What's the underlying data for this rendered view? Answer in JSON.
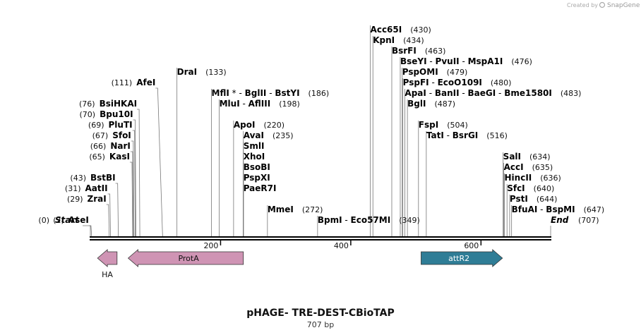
{
  "credit": {
    "prefix": "Created by",
    "brand": "SnapGene"
  },
  "title": "pHAGE- TRE-DEST-CBioTAP",
  "length_label": "707 bp",
  "sequence_length": 707,
  "ticks": [
    "200",
    "400",
    "600"
  ],
  "tick_values": [
    200,
    400,
    600
  ],
  "start_label": "Start",
  "end_label": "End",
  "start_pos": "(0)",
  "end_pos": "(707)",
  "sites": [
    {
      "id": "asei",
      "segs": [
        {
          "t": "AseI",
          "b": true
        }
      ],
      "pos": "(2)",
      "site": 2,
      "row": 1,
      "side": "left"
    },
    {
      "id": "zrai",
      "segs": [
        {
          "t": "ZraI",
          "b": true
        }
      ],
      "pos": "(29)",
      "site": 29,
      "row": 3,
      "side": "left"
    },
    {
      "id": "aatii",
      "segs": [
        {
          "t": "AatII",
          "b": true
        }
      ],
      "pos": "(31)",
      "site": 31,
      "row": 4,
      "side": "left"
    },
    {
      "id": "bstbi",
      "segs": [
        {
          "t": "BstBI",
          "b": true
        }
      ],
      "pos": "(43)",
      "site": 43,
      "row": 5,
      "side": "left"
    },
    {
      "id": "kasi",
      "segs": [
        {
          "t": "KasI",
          "b": true
        }
      ],
      "pos": "(65)",
      "site": 65,
      "row": 7,
      "side": "left"
    },
    {
      "id": "nari",
      "segs": [
        {
          "t": "NarI",
          "b": true
        }
      ],
      "pos": "(66)",
      "site": 66,
      "row": 8,
      "side": "left"
    },
    {
      "id": "sfoi",
      "segs": [
        {
          "t": "SfoI",
          "b": true
        }
      ],
      "pos": "(67)",
      "site": 67,
      "row": 9,
      "side": "left"
    },
    {
      "id": "plutI",
      "segs": [
        {
          "t": "PluTI",
          "b": true
        }
      ],
      "pos": "(69)",
      "site": 69,
      "row": 10,
      "side": "left"
    },
    {
      "id": "bpu10i",
      "segs": [
        {
          "t": "Bpu10I",
          "b": true
        }
      ],
      "pos": "(70)",
      "site": 70,
      "row": 11,
      "side": "left"
    },
    {
      "id": "bsihkai",
      "segs": [
        {
          "t": "BsiHKAI",
          "b": true
        }
      ],
      "pos": "(76)",
      "site": 76,
      "row": 12,
      "side": "left"
    },
    {
      "id": "afei",
      "segs": [
        {
          "t": "AfeI",
          "b": true
        }
      ],
      "pos": "(111)",
      "site": 111,
      "row": 14,
      "side": "left"
    },
    {
      "id": "drai",
      "segs": [
        {
          "t": "DraI",
          "b": true
        }
      ],
      "pos": "(133)",
      "site": 133,
      "row": 15,
      "side": "right"
    },
    {
      "id": "mfli",
      "segs": [
        {
          "t": "MflI",
          "b": true
        },
        {
          "t": " * - ",
          "b": false
        },
        {
          "t": "BglII",
          "b": true
        },
        {
          "t": "  - ",
          "b": false
        },
        {
          "t": "BstYI",
          "b": true
        }
      ],
      "pos": "(186)",
      "site": 186,
      "row": 13,
      "side": "right"
    },
    {
      "id": "mlui",
      "segs": [
        {
          "t": "MluI",
          "b": true
        },
        {
          "t": "  - ",
          "b": false
        },
        {
          "t": "AflIII",
          "b": true
        }
      ],
      "pos": "(198)",
      "site": 198,
      "row": 12,
      "side": "right"
    },
    {
      "id": "apoi",
      "segs": [
        {
          "t": "ApoI",
          "b": true
        }
      ],
      "pos": "(220)",
      "site": 220,
      "row": 10,
      "side": "right"
    },
    {
      "id": "avai",
      "segs": [
        {
          "t": "AvaI",
          "b": true
        }
      ],
      "pos": "(235)",
      "site": 235,
      "row": 9,
      "side": "right"
    },
    {
      "id": "smli",
      "segs": [
        {
          "t": "SmlI",
          "b": true
        }
      ],
      "pos": "",
      "site": 235,
      "row": 8,
      "side": "right"
    },
    {
      "id": "xhoi",
      "segs": [
        {
          "t": "XhoI",
          "b": true
        }
      ],
      "pos": "",
      "site": 235,
      "row": 7,
      "side": "right"
    },
    {
      "id": "bsobi",
      "segs": [
        {
          "t": "BsoBI",
          "b": true
        }
      ],
      "pos": "",
      "site": 235,
      "row": 6,
      "side": "right"
    },
    {
      "id": "pspxi",
      "segs": [
        {
          "t": "PspXI",
          "b": true
        }
      ],
      "pos": "",
      "site": 235,
      "row": 5,
      "side": "right"
    },
    {
      "id": "paer7i",
      "segs": [
        {
          "t": "PaeR7I",
          "b": true
        }
      ],
      "pos": "",
      "site": 235,
      "row": 4,
      "side": "right"
    },
    {
      "id": "mmei",
      "segs": [
        {
          "t": "MmeI",
          "b": true
        }
      ],
      "pos": "(272)",
      "site": 272,
      "row": 2,
      "side": "right"
    },
    {
      "id": "bpmi",
      "segs": [
        {
          "t": "BpmI",
          "b": true
        },
        {
          "t": "  - ",
          "b": false
        },
        {
          "t": "Eco57MI",
          "b": true
        }
      ],
      "pos": "(349)",
      "site": 349,
      "row": 1,
      "side": "right"
    },
    {
      "id": "acc65i",
      "segs": [
        {
          "t": "Acc65I",
          "b": true
        }
      ],
      "pos": "(430)",
      "site": 430,
      "row": 19,
      "side": "right"
    },
    {
      "id": "kpni",
      "segs": [
        {
          "t": "KpnI",
          "b": true
        }
      ],
      "pos": "(434)",
      "site": 434,
      "row": 18,
      "side": "right"
    },
    {
      "id": "bsrfi",
      "segs": [
        {
          "t": "BsrFI",
          "b": true
        }
      ],
      "pos": "(463)",
      "site": 463,
      "row": 17,
      "side": "right"
    },
    {
      "id": "bseyi",
      "segs": [
        {
          "t": "BseYI",
          "b": true
        },
        {
          "t": "  - ",
          "b": false
        },
        {
          "t": "PvuII",
          "b": true
        },
        {
          "t": "  - ",
          "b": false
        },
        {
          "t": "MspA1I",
          "b": true
        }
      ],
      "pos": "(476)",
      "site": 476,
      "row": 16,
      "side": "right"
    },
    {
      "id": "pspomi",
      "segs": [
        {
          "t": "PspOMI",
          "b": true
        }
      ],
      "pos": "(479)",
      "site": 479,
      "row": 15,
      "side": "right"
    },
    {
      "id": "pspfi",
      "segs": [
        {
          "t": "PspFI",
          "b": true
        },
        {
          "t": "  - ",
          "b": false
        },
        {
          "t": "EcoO109I",
          "b": true
        }
      ],
      "pos": "(480)",
      "site": 480,
      "row": 14,
      "side": "right"
    },
    {
      "id": "apai",
      "segs": [
        {
          "t": "ApaI",
          "b": true
        },
        {
          "t": "  - ",
          "b": false
        },
        {
          "t": "BanII",
          "b": true
        },
        {
          "t": "  - ",
          "b": false
        },
        {
          "t": "BaeGI",
          "b": true
        },
        {
          "t": "  - ",
          "b": false
        },
        {
          "t": "Bme1580I",
          "b": true
        }
      ],
      "pos": "(483)",
      "site": 483,
      "row": 13,
      "side": "right"
    },
    {
      "id": "bgli",
      "segs": [
        {
          "t": "BglI",
          "b": true
        }
      ],
      "pos": "(487)",
      "site": 487,
      "row": 12,
      "side": "right"
    },
    {
      "id": "fspi",
      "segs": [
        {
          "t": "FspI",
          "b": true
        }
      ],
      "pos": "(504)",
      "site": 504,
      "row": 10,
      "side": "right"
    },
    {
      "id": "tati",
      "segs": [
        {
          "t": "TatI",
          "b": true
        },
        {
          "t": "  - ",
          "b": false
        },
        {
          "t": "BsrGI",
          "b": true
        }
      ],
      "pos": "(516)",
      "site": 516,
      "row": 9,
      "side": "right"
    },
    {
      "id": "sali",
      "segs": [
        {
          "t": "SalI",
          "b": true
        }
      ],
      "pos": "(634)",
      "site": 634,
      "row": 7,
      "side": "right"
    },
    {
      "id": "acci",
      "segs": [
        {
          "t": "AccI",
          "b": true
        }
      ],
      "pos": "(635)",
      "site": 635,
      "row": 6,
      "side": "right"
    },
    {
      "id": "hincii",
      "segs": [
        {
          "t": "HincII",
          "b": true
        }
      ],
      "pos": "(636)",
      "site": 636,
      "row": 5,
      "side": "right"
    },
    {
      "id": "sfci",
      "segs": [
        {
          "t": "SfcI",
          "b": true
        }
      ],
      "pos": "(640)",
      "site": 640,
      "row": 4,
      "side": "right"
    },
    {
      "id": "psti",
      "segs": [
        {
          "t": "PstI",
          "b": true
        }
      ],
      "pos": "(644)",
      "site": 644,
      "row": 3,
      "side": "right"
    },
    {
      "id": "bfuai",
      "segs": [
        {
          "t": "BfuAI",
          "b": true
        },
        {
          "t": "  - ",
          "b": false
        },
        {
          "t": "BspMI",
          "b": true
        }
      ],
      "pos": "(647)",
      "site": 647,
      "row": 2,
      "side": "right"
    }
  ],
  "features": [
    {
      "id": "ha",
      "label": "HA",
      "start": 11,
      "end": 41,
      "direction": "left",
      "color": "#cf94b4",
      "label_below": true
    },
    {
      "id": "prota",
      "label": "ProtA",
      "start": 58,
      "end": 235,
      "direction": "left",
      "color": "#cf94b4",
      "label_below": false
    },
    {
      "id": "attr2",
      "label": "attR2",
      "start": 508,
      "end": 633,
      "direction": "right",
      "color": "#2f7d96",
      "label_below": false
    }
  ]
}
